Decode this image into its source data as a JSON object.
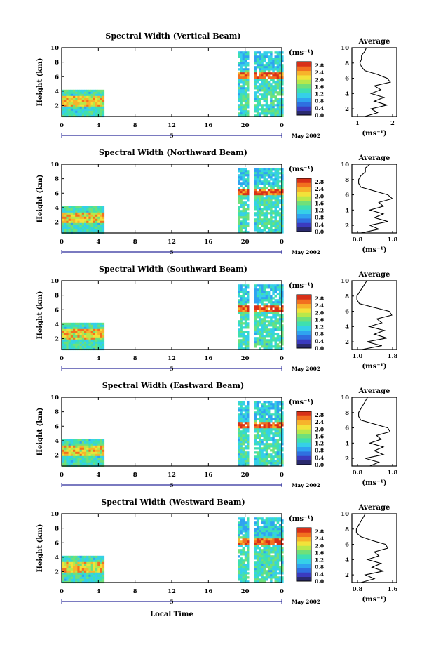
{
  "colors": {
    "colorbar": [
      "#2a2a6e",
      "#3b3bbf",
      "#2f6fe0",
      "#2fa3f0",
      "#35d0e8",
      "#3ee0b0",
      "#6fe07a",
      "#b8e84a",
      "#f2e23a",
      "#f7b32b",
      "#f2701f",
      "#d83018"
    ]
  },
  "xaxis": {
    "ticks": [
      "0",
      "4",
      "8",
      "12",
      "16",
      "20",
      "0"
    ],
    "sublabel": "5",
    "date": "May 2002",
    "xlabel": "Local Time"
  },
  "colorbar_unit": "(ms⁻¹)",
  "panels": [
    {
      "title": "Spectral Width (Vertical Beam)",
      "ylabel": "Height (km)",
      "yticks": [
        "2",
        "4",
        "6",
        "8",
        "10"
      ],
      "colorbar_ticks": [
        "0.0",
        "0.4",
        "0.8",
        "1.2",
        "1.6",
        "2.0",
        "2.4",
        "2.8"
      ],
      "avg_title": "Average",
      "avg_xticks": [
        "1",
        "2"
      ],
      "avg_xlabel": "(ms⁻¹)"
    },
    {
      "title": "Spectral Width (Northward Beam)",
      "ylabel": "Height (km)",
      "yticks": [
        "2",
        "4",
        "6",
        "8",
        "10"
      ],
      "colorbar_ticks": [
        "0.0",
        "0.4",
        "0.8",
        "1.2",
        "1.6",
        "2.0",
        "2.4",
        "2.8"
      ],
      "avg_title": "Average",
      "avg_xticks": [
        "0.8",
        "1.8"
      ],
      "avg_xlabel": "(ms⁻¹)"
    },
    {
      "title": "Spectral Width (Southward Beam)",
      "ylabel": "Height (km)",
      "yticks": [
        "2",
        "4",
        "6",
        "8",
        "10"
      ],
      "colorbar_ticks": [
        "0.0",
        "0.4",
        "0.8",
        "1.2",
        "1.6",
        "2.0",
        "2.4",
        "2.8"
      ],
      "avg_title": "Average",
      "avg_xticks": [
        "1.0",
        "1.8"
      ],
      "avg_xlabel": "(ms⁻¹)"
    },
    {
      "title": "Spectral Width (Eastward Beam)",
      "ylabel": "Height (km)",
      "yticks": [
        "2",
        "4",
        "6",
        "8",
        "10"
      ],
      "colorbar_ticks": [
        "0.0",
        "0.4",
        "0.8",
        "1.2",
        "1.6",
        "2.0",
        "2.4",
        "2.8"
      ],
      "avg_title": "Average",
      "avg_xticks": [
        "0.8",
        "1.8"
      ],
      "avg_xlabel": "(ms⁻¹)"
    },
    {
      "title": "Spectral Width (Westward Beam)",
      "ylabel": "Height (km)",
      "yticks": [
        "2",
        "4",
        "6",
        "8",
        "10"
      ],
      "colorbar_ticks": [
        "0.0",
        "0.4",
        "0.8",
        "1.2",
        "1.6",
        "2.0",
        "2.4",
        "2.8"
      ],
      "avg_title": "Average",
      "avg_xticks": [
        "0.8",
        "1.6"
      ],
      "avg_xlabel": "(ms⁻¹)"
    }
  ],
  "chart_data": [
    {
      "type": "heatmap",
      "title": "Spectral Width (Vertical Beam)",
      "xlabel": "Local Time",
      "ylabel": "Height (km)",
      "xlim": [
        0,
        24
      ],
      "ylim": [
        0.5,
        10
      ],
      "zlim": [
        0,
        3.0
      ],
      "colorbar_label": "(ms⁻¹)",
      "data_coverage": [
        {
          "x": [
            0,
            4.5
          ],
          "y": [
            0.5,
            4.2
          ]
        },
        {
          "x": [
            19.2,
            20.2
          ],
          "y": [
            0.5,
            9.5
          ]
        },
        {
          "x": [
            21,
            24
          ],
          "y": [
            0.5,
            9.5
          ]
        }
      ]
    },
    {
      "type": "heatmap",
      "title": "Spectral Width (Northward Beam)",
      "xlabel": "Local Time",
      "ylabel": "Height (km)",
      "xlim": [
        0,
        24
      ],
      "ylim": [
        0.5,
        10
      ],
      "zlim": [
        0,
        3.0
      ],
      "colorbar_label": "(ms⁻¹)",
      "data_coverage": [
        {
          "x": [
            0,
            4.5
          ],
          "y": [
            0.5,
            4.2
          ]
        },
        {
          "x": [
            19.2,
            20.2
          ],
          "y": [
            0.5,
            9.5
          ]
        },
        {
          "x": [
            21,
            24
          ],
          "y": [
            0.5,
            9.5
          ]
        }
      ]
    },
    {
      "type": "heatmap",
      "title": "Spectral Width (Southward Beam)",
      "xlabel": "Local Time",
      "ylabel": "Height (km)",
      "xlim": [
        0,
        24
      ],
      "ylim": [
        0.5,
        10
      ],
      "zlim": [
        0,
        3.0
      ],
      "colorbar_label": "(ms⁻¹)",
      "data_coverage": [
        {
          "x": [
            0,
            4.5
          ],
          "y": [
            0.5,
            4.2
          ]
        },
        {
          "x": [
            19.2,
            20.2
          ],
          "y": [
            0.5,
            9.5
          ]
        },
        {
          "x": [
            21,
            24
          ],
          "y": [
            0.5,
            9.5
          ]
        }
      ]
    },
    {
      "type": "heatmap",
      "title": "Spectral Width (Eastward Beam)",
      "xlabel": "Local Time",
      "ylabel": "Height (km)",
      "xlim": [
        0,
        24
      ],
      "ylim": [
        0.5,
        10
      ],
      "zlim": [
        0,
        3.0
      ],
      "colorbar_label": "(ms⁻¹)",
      "data_coverage": [
        {
          "x": [
            0,
            4.5
          ],
          "y": [
            0.5,
            4.2
          ]
        },
        {
          "x": [
            19.2,
            20.2
          ],
          "y": [
            0.5,
            9.5
          ]
        },
        {
          "x": [
            21,
            24
          ],
          "y": [
            0.5,
            9.5
          ]
        }
      ]
    },
    {
      "type": "heatmap",
      "title": "Spectral Width (Westward Beam)",
      "xlabel": "Local Time",
      "ylabel": "Height (km)",
      "xlim": [
        0,
        24
      ],
      "ylim": [
        0.5,
        10
      ],
      "zlim": [
        0,
        3.0
      ],
      "colorbar_label": "(ms⁻¹)",
      "data_coverage": [
        {
          "x": [
            0,
            4.5
          ],
          "y": [
            0.5,
            4.2
          ]
        },
        {
          "x": [
            19.2,
            20.2
          ],
          "y": [
            0.5,
            9.5
          ]
        },
        {
          "x": [
            21,
            24
          ],
          "y": [
            0.5,
            9.5
          ]
        }
      ]
    },
    {
      "type": "line",
      "title": "Average",
      "xlabel": "(ms⁻¹)",
      "ylabel": "Height (km)",
      "xlim": [
        0.8,
        2.2
      ],
      "ylim": [
        1,
        10
      ],
      "y": [
        1.0,
        1.5,
        2.0,
        2.5,
        3.0,
        3.5,
        4.0,
        4.5,
        5.0,
        5.5,
        6.0,
        6.5,
        7.0,
        7.5,
        8.0,
        8.5,
        9.0,
        9.5,
        10.0
      ],
      "values": [
        1.2,
        1.6,
        1.4,
        1.9,
        1.5,
        1.8,
        1.4,
        1.7,
        1.5,
        2.0,
        1.9,
        1.6,
        1.2,
        1.1,
        1.05,
        1.1,
        1.1,
        1.2,
        1.25
      ]
    },
    {
      "type": "line",
      "title": "Average",
      "xlabel": "(ms⁻¹)",
      "ylabel": "Height (km)",
      "xlim": [
        0.8,
        1.8
      ],
      "ylim": [
        1,
        10
      ],
      "y": [
        1.0,
        1.5,
        2.0,
        2.5,
        3.0,
        3.5,
        4.0,
        4.5,
        5.0,
        5.5,
        6.0,
        6.5,
        7.0,
        7.5,
        8.0,
        8.5,
        9.0,
        9.5,
        10.0
      ],
      "values": [
        1.0,
        1.4,
        1.2,
        1.6,
        1.3,
        1.5,
        1.2,
        1.5,
        1.4,
        1.7,
        1.6,
        1.3,
        1.0,
        0.95,
        0.95,
        1.0,
        1.1,
        1.1,
        1.2
      ]
    },
    {
      "type": "line",
      "title": "Average",
      "xlabel": "(ms⁻¹)",
      "ylabel": "Height (km)",
      "xlim": [
        0.9,
        1.8
      ],
      "ylim": [
        1,
        10
      ],
      "y": [
        1.0,
        1.5,
        2.0,
        2.5,
        3.0,
        3.5,
        4.0,
        4.5,
        5.0,
        5.5,
        6.0,
        6.5,
        7.0,
        7.5,
        8.0,
        8.5,
        9.0,
        9.5,
        10.0
      ],
      "values": [
        1.1,
        1.5,
        1.2,
        1.6,
        1.35,
        1.55,
        1.25,
        1.5,
        1.4,
        1.7,
        1.65,
        1.35,
        1.05,
        1.0,
        1.0,
        1.05,
        1.1,
        1.15,
        1.2
      ]
    },
    {
      "type": "line",
      "title": "Average",
      "xlabel": "(ms⁻¹)",
      "ylabel": "Height (km)",
      "xlim": [
        0.8,
        1.8
      ],
      "ylim": [
        1,
        10
      ],
      "y": [
        1.0,
        1.5,
        2.0,
        2.5,
        3.0,
        3.5,
        4.0,
        4.5,
        5.0,
        5.5,
        6.0,
        6.5,
        7.0,
        7.5,
        8.0,
        8.5,
        9.0,
        9.5,
        10.0
      ],
      "values": [
        1.2,
        1.4,
        1.1,
        1.5,
        1.3,
        1.5,
        1.2,
        1.45,
        1.35,
        1.65,
        1.6,
        1.3,
        1.0,
        0.95,
        0.95,
        1.0,
        1.05,
        1.1,
        1.15
      ]
    },
    {
      "type": "line",
      "title": "Average",
      "xlabel": "(ms⁻¹)",
      "ylabel": "Height (km)",
      "xlim": [
        0.8,
        1.8
      ],
      "ylim": [
        1,
        10
      ],
      "y": [
        1.0,
        1.5,
        2.0,
        2.5,
        3.0,
        3.5,
        4.0,
        4.5,
        5.0,
        5.5,
        6.0,
        6.5,
        7.0,
        7.5,
        8.0,
        8.5,
        9.0,
        9.5,
        10.0
      ],
      "values": [
        1.0,
        1.3,
        1.1,
        1.5,
        1.25,
        1.45,
        1.15,
        1.4,
        1.3,
        1.6,
        1.55,
        1.25,
        1.0,
        0.9,
        0.9,
        0.95,
        1.0,
        1.05,
        1.1
      ]
    }
  ]
}
